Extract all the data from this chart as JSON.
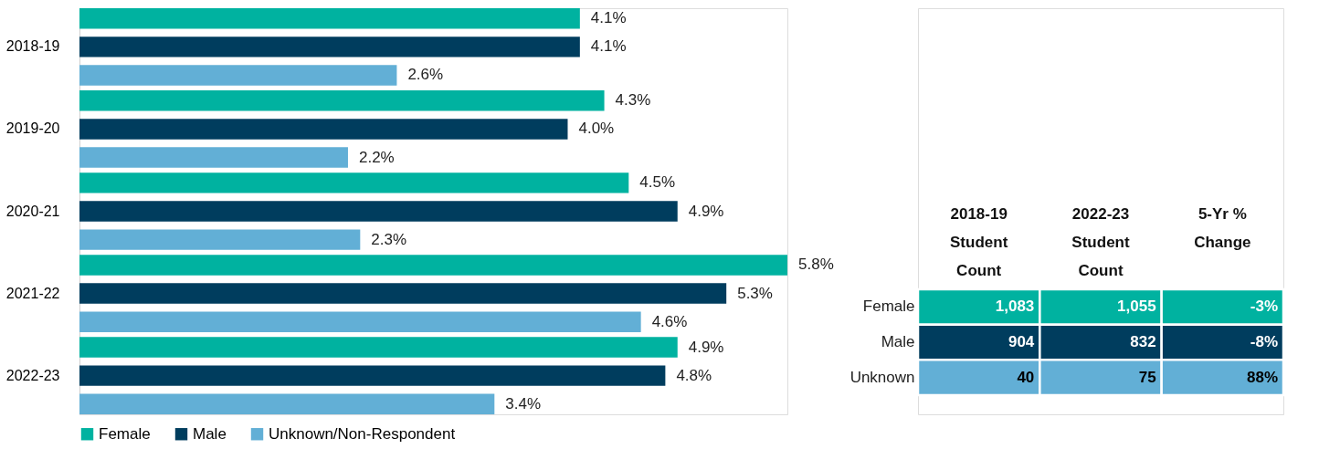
{
  "chart_data": [
    {
      "type": "bar",
      "orientation": "horizontal",
      "categories": [
        "2018-19",
        "2019-20",
        "2020-21",
        "2021-22",
        "2022-23"
      ],
      "series": [
        {
          "name": "Female",
          "color": "#00b2a0",
          "values": [
            4.1,
            4.3,
            4.5,
            5.8,
            4.9
          ],
          "value_labels": [
            "4.1%",
            "4.3%",
            "4.5%",
            "5.8%",
            "4.9%"
          ]
        },
        {
          "name": "Male",
          "color": "#003d5e",
          "values": [
            4.1,
            4.0,
            4.9,
            5.3,
            4.8
          ],
          "value_labels": [
            "4.1%",
            "4.0%",
            "4.9%",
            "5.3%",
            "4.8%"
          ]
        },
        {
          "name": "Unknown/Non-Respondent",
          "color": "#62afd6",
          "values": [
            2.6,
            2.2,
            2.3,
            4.6,
            3.4
          ],
          "value_labels": [
            "2.6%",
            "2.2%",
            "2.3%",
            "4.6%",
            "3.4%"
          ]
        }
      ],
      "legend": "bottom",
      "tick_labels": "y"
    },
    {
      "type": "other",
      "categories": [
        "2018-19\nStudent\nCount",
        "2022-23\nStudent\nCount",
        "5-Yr %\nChange"
      ],
      "y_categories": [
        "Female",
        "Male",
        "Unknown"
      ],
      "colors": [
        "#00b2a0",
        "#003d5e",
        "#62afd6"
      ],
      "cell_labels": [
        [
          "1,083",
          "1,055",
          "-3%"
        ],
        [
          "904",
          "832",
          "-8%"
        ],
        [
          "40",
          "75",
          "88%"
        ]
      ]
    }
  ]
}
